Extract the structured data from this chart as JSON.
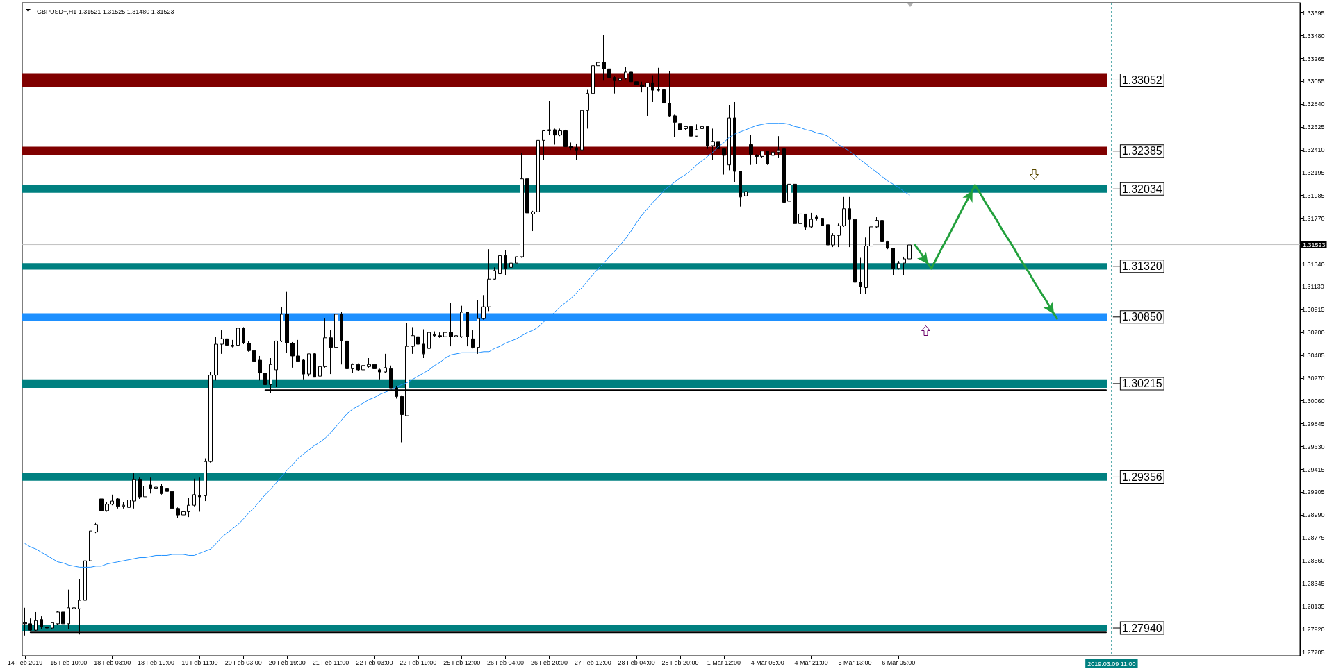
{
  "chart_data": {
    "type": "candlestick",
    "title": "GBPUSD+,H1 1.31521 1.31525 1.31480 1.31523",
    "color": "#000000",
    "categories": [
      "14 Feb 2019",
      null,
      null,
      null,
      null,
      null,
      null,
      null,
      "15 Feb 10:00",
      null,
      null,
      null,
      null,
      null,
      null,
      null,
      "18 Feb 03:00",
      null,
      null,
      null,
      null,
      null,
      null,
      null,
      "18 Feb 19:00",
      null,
      null,
      null,
      null,
      null,
      null,
      null,
      "19 Feb 11:00",
      null,
      null,
      null,
      null,
      null,
      null,
      null,
      "20 Feb 03:00",
      null,
      null,
      null,
      null,
      null,
      null,
      null,
      "20 Feb 19:00",
      null,
      null,
      null,
      null,
      null,
      null,
      null,
      "21 Feb 11:00",
      null,
      null,
      null,
      null,
      null,
      null,
      null,
      "22 Feb 03:00",
      null,
      null,
      null,
      null,
      null,
      null,
      null,
      "22 Feb 19:00",
      null,
      null,
      null,
      null,
      null,
      null,
      null,
      "25 Feb 12:00",
      null,
      null,
      null,
      null,
      null,
      null,
      null,
      "26 Feb 04:00",
      null,
      null,
      null,
      null,
      null,
      null,
      null,
      "26 Feb 20:00",
      null,
      null,
      null,
      null,
      null,
      null,
      null,
      "27 Feb 12:00",
      null,
      null,
      null,
      null,
      null,
      null,
      null,
      "28 Feb 04:00",
      null,
      null,
      null,
      null,
      null,
      null,
      null,
      "28 Feb 20:00",
      null,
      null,
      null,
      null,
      null,
      null,
      null,
      "1 Mar 12:00",
      null,
      null,
      null,
      null,
      null,
      null,
      null,
      "4 Mar 05:00",
      null,
      null,
      null,
      null,
      null,
      null,
      null,
      "4 Mar 21:00",
      null,
      null,
      null,
      null,
      null,
      null,
      null,
      "5 Mar 13:00",
      null,
      null,
      null,
      null,
      null,
      null,
      null,
      "6 Mar 05:00",
      null,
      null,
      null,
      null,
      null,
      null,
      null,
      null,
      null,
      null,
      null,
      null,
      null,
      null,
      null,
      null,
      null,
      null,
      null,
      null,
      null,
      null,
      null,
      null,
      null,
      null,
      null,
      null,
      null,
      null,
      null,
      null,
      null,
      null,
      null,
      null,
      null,
      null,
      "2019.03.09 11:00",
      null,
      null,
      null,
      null,
      null,
      null,
      null,
      null,
      null,
      null,
      null,
      null,
      null,
      null,
      null,
      null,
      null,
      null,
      null,
      null,
      null,
      null,
      null,
      null,
      null,
      null,
      null,
      null,
      null,
      null,
      null,
      null,
      null,
      null
    ],
    "ohlc": [
      [
        1.2798,
        1.2812,
        1.2786,
        1.2797
      ],
      [
        1.2797,
        1.2802,
        1.279,
        1.2791
      ],
      [
        1.2791,
        1.2808,
        1.279,
        1.28
      ],
      [
        1.2801,
        1.2804,
        1.2792,
        1.2794
      ],
      [
        1.2794,
        1.2795,
        1.2791,
        1.2793
      ],
      [
        1.2793,
        1.2798,
        1.2792,
        1.2798
      ],
      [
        1.2797,
        1.2809,
        1.2796,
        1.2808
      ],
      [
        1.2808,
        1.2822,
        1.2783,
        1.2797
      ],
      [
        1.2797,
        1.2829,
        1.2792,
        1.2812
      ],
      [
        1.2811,
        1.283,
        1.2809,
        1.2812
      ],
      [
        1.2811,
        1.2839,
        1.2787,
        1.2819
      ],
      [
        1.2819,
        1.2856,
        1.2808,
        1.2856
      ],
      [
        1.2856,
        1.2894,
        1.2853,
        1.2884
      ],
      [
        1.2883,
        1.2892,
        1.2882,
        1.289
      ],
      [
        1.2914,
        1.2916,
        1.2899,
        1.2903
      ],
      [
        1.2903,
        1.2911,
        1.2902,
        1.2909
      ],
      [
        1.2909,
        1.2918,
        1.2908,
        1.2912
      ],
      [
        1.2914,
        1.2915,
        1.2905,
        1.2907
      ],
      [
        1.2907,
        1.2911,
        1.2905,
        1.2908
      ],
      [
        1.2906,
        1.2915,
        1.289,
        1.2913
      ],
      [
        1.2912,
        1.2938,
        1.2905,
        1.2932
      ],
      [
        1.2932,
        1.2934,
        1.2914,
        1.2916
      ],
      [
        1.2916,
        1.2931,
        1.2915,
        1.2926
      ],
      [
        1.2927,
        1.2934,
        1.2919,
        1.2924
      ],
      [
        1.2924,
        1.2928,
        1.292,
        1.2925
      ],
      [
        1.2926,
        1.2928,
        1.2918,
        1.2919
      ],
      [
        1.2924,
        1.2925,
        1.2912,
        1.2921
      ],
      [
        1.2921,
        1.2922,
        1.2903,
        1.2905
      ],
      [
        1.2905,
        1.2906,
        1.2896,
        1.2899
      ],
      [
        1.2899,
        1.2903,
        1.2894,
        1.2902
      ],
      [
        1.2902,
        1.2915,
        1.2897,
        1.2908
      ],
      [
        1.2908,
        1.2933,
        1.2907,
        1.2918
      ],
      [
        1.2917,
        1.2934,
        1.2902,
        1.2916
      ],
      [
        1.2917,
        1.2952,
        1.2912,
        1.2949
      ],
      [
        1.2949,
        1.3033,
        1.2948,
        1.303
      ],
      [
        1.303,
        1.3066,
        1.3025,
        1.3059
      ],
      [
        1.3059,
        1.3072,
        1.305,
        1.3064
      ],
      [
        1.3064,
        1.3072,
        1.3056,
        1.3058
      ],
      [
        1.3058,
        1.3063,
        1.3056,
        1.3057
      ],
      [
        1.3058,
        1.3076,
        1.3053,
        1.3074
      ],
      [
        1.3074,
        1.3075,
        1.3059,
        1.306
      ],
      [
        1.306,
        1.3062,
        1.3052,
        1.3053
      ],
      [
        1.3053,
        1.3057,
        1.3043,
        1.3043
      ],
      [
        1.3044,
        1.3048,
        1.3025,
        1.3032
      ],
      [
        1.3032,
        1.3036,
        1.3011,
        1.3021
      ],
      [
        1.3021,
        1.3046,
        1.3013,
        1.304
      ],
      [
        1.3035,
        1.3062,
        1.3019,
        1.3062
      ],
      [
        1.3062,
        1.3094,
        1.3061,
        1.3087
      ],
      [
        1.3087,
        1.3108,
        1.3051,
        1.306
      ],
      [
        1.306,
        1.3061,
        1.3037,
        1.3048
      ],
      [
        1.3048,
        1.3063,
        1.3043,
        1.3043
      ],
      [
        1.3044,
        1.3045,
        1.3026,
        1.3031
      ],
      [
        1.3031,
        1.305,
        1.3029,
        1.305
      ],
      [
        1.305,
        1.3051,
        1.3028,
        1.3028
      ],
      [
        1.3029,
        1.3039,
        1.3026,
        1.3038
      ],
      [
        1.3038,
        1.3083,
        1.3037,
        1.3065
      ],
      [
        1.3065,
        1.3072,
        1.3031,
        1.3056
      ],
      [
        1.3056,
        1.3094,
        1.3053,
        1.3087
      ],
      [
        1.3087,
        1.3089,
        1.304,
        1.3062
      ],
      [
        1.3062,
        1.307,
        1.3026,
        1.3036
      ],
      [
        1.3036,
        1.3041,
        1.3032,
        1.304
      ],
      [
        1.304,
        1.3041,
        1.3034,
        1.3035
      ],
      [
        1.3035,
        1.3047,
        1.3024,
        1.3039
      ],
      [
        1.3038,
        1.3046,
        1.3037,
        1.304
      ],
      [
        1.304,
        1.3041,
        1.3034,
        1.3036
      ],
      [
        1.3035,
        1.3036,
        1.3026,
        1.3033
      ],
      [
        1.3033,
        1.305,
        1.3032,
        1.3037
      ],
      [
        1.3036,
        1.3039,
        1.3018,
        1.3018
      ],
      [
        1.3018,
        1.302,
        1.3008,
        1.301
      ],
      [
        1.301,
        1.3011,
        1.2967,
        1.2993
      ],
      [
        1.2992,
        1.3079,
        1.2992,
        1.3057
      ],
      [
        1.3057,
        1.3075,
        1.305,
        1.3067
      ],
      [
        1.3066,
        1.3068,
        1.3059,
        1.3059
      ],
      [
        1.3059,
        1.3073,
        1.3046,
        1.305
      ],
      [
        1.3055,
        1.3071,
        1.3054,
        1.307
      ],
      [
        1.3068,
        1.3071,
        1.3066,
        1.3067
      ],
      [
        1.3067,
        1.307,
        1.3065,
        1.3066
      ],
      [
        1.3066,
        1.3076,
        1.3065,
        1.307
      ],
      [
        1.307,
        1.3098,
        1.3057,
        1.3066
      ],
      [
        1.3066,
        1.308,
        1.3057,
        1.3067
      ],
      [
        1.3066,
        1.3095,
        1.3065,
        1.3089
      ],
      [
        1.3089,
        1.3089,
        1.3057,
        1.3066
      ],
      [
        1.3064,
        1.3072,
        1.3055,
        1.3056
      ],
      [
        1.3056,
        1.31,
        1.305,
        1.3083
      ],
      [
        1.3083,
        1.3105,
        1.3082,
        1.3094
      ],
      [
        1.3094,
        1.3148,
        1.309,
        1.312
      ],
      [
        1.312,
        1.3131,
        1.3119,
        1.3128
      ],
      [
        1.3125,
        1.3145,
        1.3124,
        1.3142
      ],
      [
        1.3142,
        1.3147,
        1.3124,
        1.313
      ],
      [
        1.3131,
        1.3136,
        1.3124,
        1.3135
      ],
      [
        1.3135,
        1.3161,
        1.3134,
        1.3141
      ],
      [
        1.3141,
        1.3238,
        1.314,
        1.3214
      ],
      [
        1.3214,
        1.3234,
        1.3176,
        1.3182
      ],
      [
        1.3181,
        1.3184,
        1.3165,
        1.3183
      ],
      [
        1.3183,
        1.3283,
        1.314,
        1.325
      ],
      [
        1.325,
        1.326,
        1.3232,
        1.3259
      ],
      [
        1.3259,
        1.3287,
        1.3255,
        1.326
      ],
      [
        1.326,
        1.3261,
        1.3246,
        1.3255
      ],
      [
        1.3255,
        1.3261,
        1.3254,
        1.3259
      ],
      [
        1.3259,
        1.326,
        1.3244,
        1.3244
      ],
      [
        1.3244,
        1.3248,
        1.3241,
        1.3243
      ],
      [
        1.3243,
        1.3247,
        1.3232,
        1.3241
      ],
      [
        1.3241,
        1.3278,
        1.324,
        1.3278
      ],
      [
        1.3278,
        1.3298,
        1.3261,
        1.3294
      ],
      [
        1.3294,
        1.3336,
        1.3294,
        1.332
      ],
      [
        1.332,
        1.3335,
        1.3306,
        1.3323
      ],
      [
        1.3323,
        1.3349,
        1.3306,
        1.3317
      ],
      [
        1.3317,
        1.3317,
        1.3291,
        1.3309
      ],
      [
        1.3309,
        1.331,
        1.3294,
        1.3306
      ],
      [
        1.3306,
        1.3309,
        1.3304,
        1.3308
      ],
      [
        1.3308,
        1.3319,
        1.3307,
        1.3314
      ],
      [
        1.3314,
        1.3314,
        1.3305,
        1.3305
      ],
      [
        1.3305,
        1.3305,
        1.3295,
        1.3302
      ],
      [
        1.3302,
        1.3305,
        1.3295,
        1.33
      ],
      [
        1.33,
        1.3304,
        1.3273,
        1.3304
      ],
      [
        1.3304,
        1.3311,
        1.3286,
        1.3297
      ],
      [
        1.3297,
        1.3318,
        1.3296,
        1.3298
      ],
      [
        1.3298,
        1.3298,
        1.3264,
        1.3285
      ],
      [
        1.3285,
        1.3315,
        1.3272,
        1.3273
      ],
      [
        1.3273,
        1.3274,
        1.3253,
        1.3267
      ],
      [
        1.3266,
        1.3275,
        1.3257,
        1.326
      ],
      [
        1.3261,
        1.3263,
        1.326,
        1.3263
      ],
      [
        1.3263,
        1.3265,
        1.3254,
        1.3254
      ],
      [
        1.3254,
        1.3265,
        1.3253,
        1.326
      ],
      [
        1.3261,
        1.3263,
        1.3256,
        1.3263
      ],
      [
        1.3263,
        1.3263,
        1.3242,
        1.3245
      ],
      [
        1.3245,
        1.3261,
        1.3232,
        1.3249
      ],
      [
        1.3249,
        1.3249,
        1.323,
        1.3242
      ],
      [
        1.3242,
        1.3242,
        1.3218,
        1.3236
      ],
      [
        1.3227,
        1.3283,
        1.3222,
        1.3271
      ],
      [
        1.3271,
        1.3286,
        1.3211,
        1.3221
      ],
      [
        1.3221,
        1.3221,
        1.3188,
        1.3197
      ],
      [
        1.3198,
        1.3209,
        1.3171,
        1.3202
      ],
      [
        1.3246,
        1.3255,
        1.3227,
        1.3237
      ],
      [
        1.3236,
        1.3237,
        1.3228,
        1.3235
      ],
      [
        1.3235,
        1.324,
        1.3234,
        1.324
      ],
      [
        1.324,
        1.324,
        1.3227,
        1.3228
      ],
      [
        1.3236,
        1.3248,
        1.3224,
        1.3239
      ],
      [
        1.3239,
        1.3254,
        1.3234,
        1.3241
      ],
      [
        1.3242,
        1.3244,
        1.3186,
        1.3192
      ],
      [
        1.3193,
        1.3223,
        1.3179,
        1.3209
      ],
      [
        1.3209,
        1.3209,
        1.3172,
        1.3172
      ],
      [
        1.3172,
        1.3191,
        1.3166,
        1.3181
      ],
      [
        1.3181,
        1.3181,
        1.3166,
        1.3169
      ],
      [
        1.3169,
        1.3182,
        1.3168,
        1.3176
      ],
      [
        1.3178,
        1.318,
        1.3175,
        1.3177
      ],
      [
        1.3177,
        1.3177,
        1.317,
        1.317
      ],
      [
        1.3171,
        1.3171,
        1.3152,
        1.3152
      ],
      [
        1.3152,
        1.3163,
        1.315,
        1.3161
      ],
      [
        1.3161,
        1.3172,
        1.315,
        1.317
      ],
      [
        1.317,
        1.3197,
        1.3169,
        1.3186
      ],
      [
        1.3186,
        1.3197,
        1.315,
        1.3176
      ],
      [
        1.3176,
        1.3178,
        1.3098,
        1.3117
      ],
      [
        1.3117,
        1.314,
        1.3106,
        1.3113
      ],
      [
        1.3112,
        1.3159,
        1.3106,
        1.3151
      ],
      [
        1.3151,
        1.3178,
        1.315,
        1.3169
      ],
      [
        1.3169,
        1.3178,
        1.3168,
        1.3175
      ],
      [
        1.3175,
        1.3175,
        1.3143,
        1.3155
      ],
      [
        1.3155,
        1.3156,
        1.3148,
        1.3149
      ],
      [
        1.3149,
        1.3149,
        1.3124,
        1.313
      ],
      [
        1.313,
        1.3137,
        1.3129,
        1.3135
      ],
      [
        1.3135,
        1.3141,
        1.3124,
        1.3139
      ],
      [
        1.3139,
        1.3153,
        1.3131,
        1.3152
      ],
      null,
      null,
      null,
      null,
      null,
      null,
      null,
      null,
      null,
      null,
      null,
      null,
      null,
      null,
      null,
      null,
      null,
      null,
      null,
      null,
      null,
      null,
      null,
      null,
      null,
      null,
      null,
      null,
      null,
      null,
      null,
      null,
      null,
      null,
      null,
      null,
      null,
      null,
      null,
      null,
      null,
      null,
      null,
      null,
      null,
      null,
      null,
      null,
      null,
      null,
      null,
      null,
      null,
      null,
      null,
      null,
      null,
      null,
      null,
      null,
      null,
      null,
      null,
      null,
      null,
      null,
      null,
      null,
      null,
      null,
      null
    ],
    "series": [
      {
        "type": "line",
        "color": "#1e90ff",
        "values": [
          1.2872,
          1.2869,
          1.2867,
          1.2864,
          1.2861,
          1.2858,
          1.2855,
          1.2854,
          1.2852,
          1.2851,
          1.285,
          1.285,
          1.285,
          1.2851,
          1.2851,
          1.2853,
          1.2854,
          1.2855,
          1.2856,
          1.2857,
          1.2858,
          1.2859,
          1.2859,
          1.286,
          1.2861,
          1.2861,
          1.2861,
          1.2862,
          1.2862,
          1.2862,
          1.2861,
          1.2861,
          1.2863,
          1.2865,
          1.2867,
          1.2872,
          1.2878,
          1.2882,
          1.2886,
          1.289,
          1.2895,
          1.2901,
          1.2906,
          1.2912,
          1.2918,
          1.2923,
          1.2929,
          1.2935,
          1.2941,
          1.2946,
          1.2952,
          1.2956,
          1.296,
          1.2964,
          1.2967,
          1.2971,
          1.2976,
          1.2982,
          1.2988,
          1.2994,
          1.2998,
          1.3001,
          1.3004,
          1.3007,
          1.3009,
          1.3012,
          1.3014,
          1.3016,
          1.3019,
          1.3021,
          1.3023,
          1.3026,
          1.3029,
          1.3032,
          1.3035,
          1.3039,
          1.3042,
          1.3046,
          1.3049,
          1.305,
          1.3051,
          1.3051,
          1.3051,
          1.3051,
          1.3052,
          1.3052,
          1.3055,
          1.3057,
          1.306,
          1.3062,
          1.3064,
          1.3067,
          1.307,
          1.3072,
          1.3075,
          1.308,
          1.3084,
          1.3089,
          1.3094,
          1.3098,
          1.3102,
          1.3107,
          1.3112,
          1.3118,
          1.3124,
          1.313,
          1.3135,
          1.3141,
          1.3146,
          1.3152,
          1.3158,
          1.3165,
          1.3173,
          1.318,
          1.3186,
          1.3192,
          1.3197,
          1.3203,
          1.3207,
          1.3211,
          1.3215,
          1.3218,
          1.3222,
          1.3227,
          1.3231,
          1.3235,
          1.3239,
          1.3244,
          1.3248,
          1.3253,
          1.3256,
          1.3258,
          1.326,
          1.3262,
          1.3264,
          1.3265,
          1.3266,
          1.3266,
          1.3266,
          1.3266,
          1.3265,
          1.3263,
          1.3262,
          1.326,
          1.3259,
          1.3257,
          1.3256,
          1.3254,
          1.325,
          1.3246,
          1.3243,
          1.324,
          1.3236,
          1.3232,
          1.3228,
          1.3224,
          1.322,
          1.3216,
          1.3212,
          1.3209,
          1.3206,
          1.3202,
          1.3199,
          null,
          null,
          null,
          null,
          null,
          null,
          null,
          null,
          null,
          null,
          null,
          null,
          null,
          null,
          null,
          null,
          null,
          null,
          null,
          null,
          null,
          null,
          null,
          null,
          null,
          null,
          null,
          null,
          null,
          null,
          null,
          null,
          null,
          null,
          null,
          null,
          null,
          null,
          null,
          null,
          null,
          null,
          null,
          null,
          null,
          null,
          null,
          null,
          null,
          null,
          null,
          null,
          null,
          null,
          null,
          null,
          null,
          null,
          null,
          null,
          null,
          null,
          null,
          null,
          null,
          null,
          null,
          null,
          null,
          null,
          null
        ]
      },
      {
        "type": "line",
        "color": "#22a03c",
        "values": [
          null,
          null,
          null,
          null,
          null,
          null,
          null,
          null,
          null,
          null,
          null,
          null,
          null,
          null,
          null,
          null,
          null,
          null,
          null,
          null,
          null,
          null,
          null,
          null,
          null,
          null,
          null,
          null,
          null,
          null,
          null,
          null,
          null,
          null,
          null,
          null,
          null,
          null,
          null,
          null,
          null,
          null,
          null,
          null,
          null,
          null,
          null,
          null,
          null,
          null,
          null,
          null,
          null,
          null,
          null,
          null,
          null,
          null,
          null,
          null,
          null,
          null,
          null,
          null,
          null,
          null,
          null,
          null,
          null,
          null,
          null,
          null,
          null,
          null,
          null,
          null,
          null,
          null,
          null,
          null,
          null,
          null,
          null,
          null,
          null,
          null,
          null,
          null,
          null,
          null,
          null,
          null,
          null,
          null,
          null,
          null,
          null,
          null,
          null,
          null,
          null,
          null,
          null,
          null,
          null,
          null,
          null,
          null,
          null,
          null,
          null,
          null,
          null,
          null,
          null,
          null,
          null,
          null,
          null,
          null,
          null,
          null,
          null,
          null,
          null,
          null,
          null,
          null,
          null,
          null,
          null,
          null,
          null,
          null,
          null,
          null,
          null,
          null,
          null,
          null,
          null,
          null,
          null,
          null,
          null,
          null,
          null,
          null,
          null,
          null,
          null,
          null,
          null,
          null,
          null,
          null,
          null,
          null,
          null,
          null,
          null,
          null,
          null,
          1.3152,
          1.3145,
          1.3137,
          1.313,
          1.314,
          1.315,
          1.3159,
          1.3169,
          1.3179,
          1.3189,
          1.3198,
          1.3208,
          1.32,
          1.3191,
          1.3183,
          1.3175,
          1.3166,
          1.3158,
          1.315,
          1.3141,
          1.3133,
          1.3125,
          1.3116,
          1.3108,
          1.31,
          1.3091,
          1.3083,
          null,
          null,
          null,
          null,
          null,
          null,
          null,
          null,
          null,
          null,
          null,
          null,
          null,
          null,
          null,
          null,
          null,
          null,
          null,
          null,
          null,
          null,
          null,
          null,
          null,
          null,
          null,
          null,
          null,
          null,
          null,
          null,
          null,
          null,
          null,
          null,
          null,
          null,
          null,
          null,
          null,
          null,
          null,
          null
        ]
      },
      {
        "type": "line",
        "color": "#000000",
        "values": [
          null,
          1.2789,
          1.2789,
          1.2789,
          1.2789,
          1.2789,
          1.2789,
          1.2789,
          1.2789,
          1.2789,
          1.2789,
          1.2789,
          1.2789,
          1.2789,
          1.2789,
          1.2789,
          1.2789,
          1.2789,
          1.2789,
          1.2789,
          1.2789,
          1.2789,
          1.2789,
          1.2789,
          1.2789,
          1.2789,
          1.2789,
          1.2789,
          1.2789,
          1.2789,
          1.2789,
          1.2789,
          1.2789,
          1.2789,
          1.2789,
          1.2789,
          1.2789,
          1.2789,
          1.2789,
          1.2789,
          1.2789,
          1.2789,
          1.2789,
          1.2789,
          1.2789,
          1.2789,
          1.2789,
          1.2789,
          1.2789,
          1.2789,
          1.2789,
          1.2789,
          1.2789,
          1.2789,
          1.2789,
          1.2789,
          1.2789,
          1.2789,
          1.2789,
          1.2789,
          1.2789,
          1.2789,
          1.2789,
          1.2789,
          1.2789,
          1.2789,
          1.2789,
          1.2789,
          1.2789,
          1.2789,
          1.2789,
          1.2789,
          1.2789,
          1.2789,
          1.2789,
          1.2789,
          1.2789,
          1.2789,
          1.2789,
          1.2789,
          1.2789,
          1.2789,
          1.2789,
          1.2789,
          1.2789,
          1.2789,
          1.2789,
          1.2789,
          1.2789,
          1.2789,
          1.2789,
          1.2789,
          1.2789,
          1.2789,
          1.2789,
          1.2789,
          1.2789,
          1.2789,
          1.2789,
          1.2789,
          1.2789,
          1.2789,
          1.2789,
          1.2789,
          1.2789,
          1.2789,
          1.2789,
          1.2789,
          1.2789,
          1.2789,
          1.2789,
          1.2789,
          1.2789,
          1.2789,
          1.2789,
          1.2789,
          1.2789,
          1.2789,
          1.2789,
          1.2789,
          1.2789,
          1.2789,
          1.2789,
          1.2789,
          1.2789,
          1.2789,
          1.2789,
          1.2789,
          1.2789,
          1.2789,
          1.2789,
          1.2789,
          1.2789,
          1.2789,
          1.2789,
          1.2789,
          1.2789,
          1.2789,
          1.2789,
          1.2789,
          1.2789,
          1.2789,
          1.2789,
          1.2789,
          1.2789,
          1.2789,
          1.2789,
          1.2789,
          1.2789,
          1.2789,
          1.2789,
          1.2789,
          1.2789,
          1.2789,
          1.2789,
          1.2789,
          1.2789,
          1.2789,
          1.2789,
          1.2789,
          1.2789,
          1.2789,
          1.2789,
          1.2789,
          1.2789,
          1.2789,
          1.2789,
          1.2789,
          1.2789,
          1.2789,
          1.2789,
          1.2789,
          1.2789,
          1.2789,
          1.2789,
          1.2789,
          1.2789,
          1.2789,
          1.2789,
          1.2789,
          1.2789,
          1.2789,
          1.2789,
          1.2789,
          1.2789,
          1.2789,
          1.2789,
          1.2789,
          1.2789,
          1.2789,
          1.2789,
          1.2789,
          1.2789,
          1.2789,
          1.2789,
          1.2789,
          1.2789,
          1.2789,
          1.2789,
          null,
          null,
          null,
          null,
          null,
          null,
          null,
          null,
          null,
          null,
          null,
          null,
          null,
          null,
          null,
          null,
          null,
          null,
          null,
          null,
          null,
          null,
          null,
          null,
          null,
          null,
          null,
          null,
          null,
          null,
          null,
          null,
          null,
          null,
          null
        ]
      },
      {
        "type": "line",
        "color": "#000000",
        "values": [
          null,
          null,
          null,
          null,
          null,
          null,
          null,
          null,
          null,
          null,
          null,
          null,
          null,
          null,
          null,
          null,
          null,
          null,
          null,
          null,
          null,
          null,
          null,
          null,
          null,
          null,
          null,
          null,
          null,
          null,
          null,
          null,
          null,
          null,
          null,
          null,
          null,
          null,
          null,
          null,
          null,
          null,
          null,
          null,
          1.3016,
          1.3016,
          1.3016,
          1.3016,
          1.3016,
          1.3016,
          1.3016,
          1.3016,
          1.3016,
          1.3016,
          1.3016,
          1.3016,
          1.3016,
          1.3016,
          1.3016,
          1.3016,
          1.3016,
          1.3016,
          1.3016,
          1.3016,
          1.3016,
          1.3016,
          1.3016,
          1.3016,
          1.3016,
          1.3016,
          1.3016,
          1.3016,
          1.3016,
          1.3016,
          1.3016,
          1.3016,
          1.3016,
          1.3016,
          1.3016,
          1.3016,
          1.3016,
          1.3016,
          1.3016,
          1.3016,
          1.3016,
          1.3016,
          1.3016,
          1.3016,
          1.3016,
          1.3016,
          1.3016,
          1.3016,
          1.3016,
          1.3016,
          1.3016,
          1.3016,
          1.3016,
          1.3016,
          1.3016,
          1.3016,
          1.3016,
          1.3016,
          1.3016,
          1.3016,
          1.3016,
          1.3016,
          1.3016,
          1.3016,
          1.3016,
          1.3016,
          1.3016,
          1.3016,
          1.3016,
          1.3016,
          1.3016,
          1.3016,
          1.3016,
          1.3016,
          1.3016,
          1.3016,
          1.3016,
          1.3016,
          1.3016,
          1.3016,
          1.3016,
          1.3016,
          1.3016,
          1.3016,
          1.3016,
          1.3016,
          1.3016,
          1.3016,
          1.3016,
          1.3016,
          1.3016,
          1.3016,
          1.3016,
          1.3016,
          1.3016,
          1.3016,
          1.3016,
          1.3016,
          1.3016,
          1.3016,
          1.3016,
          1.3016,
          1.3016,
          1.3016,
          1.3016,
          1.3016,
          1.3016,
          1.3016,
          1.3016,
          1.3016,
          1.3016,
          1.3016,
          1.3016,
          1.3016,
          1.3016,
          1.3016,
          1.3016,
          1.3016,
          1.3016,
          1.3016,
          1.3016,
          1.3016,
          1.3016,
          1.3016,
          1.3016,
          1.3016,
          1.3016,
          1.3016,
          1.3016,
          1.3016,
          1.3016,
          1.3016,
          1.3016,
          1.3016,
          1.3016,
          1.3016,
          1.3016,
          1.3016,
          1.3016,
          1.3016,
          1.3016,
          1.3016,
          1.3016,
          1.3016,
          1.3016,
          1.3016,
          1.3016,
          1.3016,
          1.3016,
          1.3016,
          1.3016,
          1.3016,
          1.3016,
          1.3016,
          1.3016,
          null,
          null,
          null,
          null,
          null,
          null,
          null,
          null,
          null,
          null,
          null,
          null,
          null,
          null,
          null,
          null,
          null,
          null,
          null,
          null,
          null,
          null,
          null,
          null,
          null,
          null,
          null,
          null,
          null,
          null,
          null,
          null,
          null,
          null,
          null
        ]
      }
    ],
    "ylim": [
      1.2767,
      1.3379
    ],
    "yticks": [
      1.33695,
      {
        "value": 1.3348,
        "label": "1.33480"
      },
      1.33265,
      1.33055,
      {
        "value": 1.3284,
        "label": "1.32840"
      },
      1.32625,
      {
        "value": 1.3241,
        "label": "1.32410"
      },
      1.32195,
      1.31985,
      {
        "value": 1.3177,
        "label": "1.31770"
      },
      {
        "value": 1.31555,
        "label": null
      },
      {
        "value": 1.3134,
        "label": "1.31340"
      },
      {
        "value": 1.3113,
        "label": "1.31130"
      },
      1.30915,
      {
        "value": 1.307,
        "label": "1.30700"
      },
      1.30485,
      {
        "value": 1.3027,
        "label": "1.30270"
      },
      {
        "value": 1.3006,
        "label": "1.30060"
      },
      1.29845,
      {
        "value": 1.2963,
        "label": "1.29630"
      },
      1.29415,
      1.29205,
      {
        "value": 1.2899,
        "label": "1.28990"
      },
      1.28775,
      {
        "value": 1.2856,
        "label": "1.28560"
      },
      1.28345,
      1.28135,
      {
        "value": 1.2792,
        "label": "1.27920"
      },
      1.27705
    ],
    "bands": [
      {
        "axis": "y",
        "from": 1.33,
        "to": 1.3313,
        "label": "1.33052",
        "color": "#800000"
      },
      {
        "axis": "y",
        "from": 1.3236,
        "to": 1.3244,
        "label": "1.32385",
        "color": "#800000"
      },
      {
        "axis": "y",
        "from": 1.3201,
        "to": 1.3208,
        "label": "1.32034",
        "color": "#008080"
      },
      {
        "axis": "y",
        "from": 1.3129,
        "to": 1.3135,
        "label": "1.31320",
        "color": "#008080"
      },
      {
        "axis": "y",
        "from": 1.3081,
        "to": 1.3088,
        "label": "1.30850",
        "color": "#1e90ff"
      },
      {
        "axis": "y",
        "from": 1.3018,
        "to": 1.3026,
        "label": "1.30215",
        "color": "#008080"
      },
      {
        "axis": "y",
        "from": 1.2931,
        "to": 1.2938,
        "label": "1.29356",
        "color": "#008080"
      },
      {
        "axis": "y",
        "from": 1.279,
        "to": 1.2796,
        "label": "1.27940",
        "color": "#008080"
      }
    ],
    "ref_lines": [
      {
        "axis": "y",
        "value": 1.31523,
        "label": "1.31523",
        "color": "#c0c0c0"
      },
      {
        "axis": "x",
        "value": "2019.03.09 11:00",
        "color": "#008080",
        "line_style": "dashed"
      }
    ]
  }
}
